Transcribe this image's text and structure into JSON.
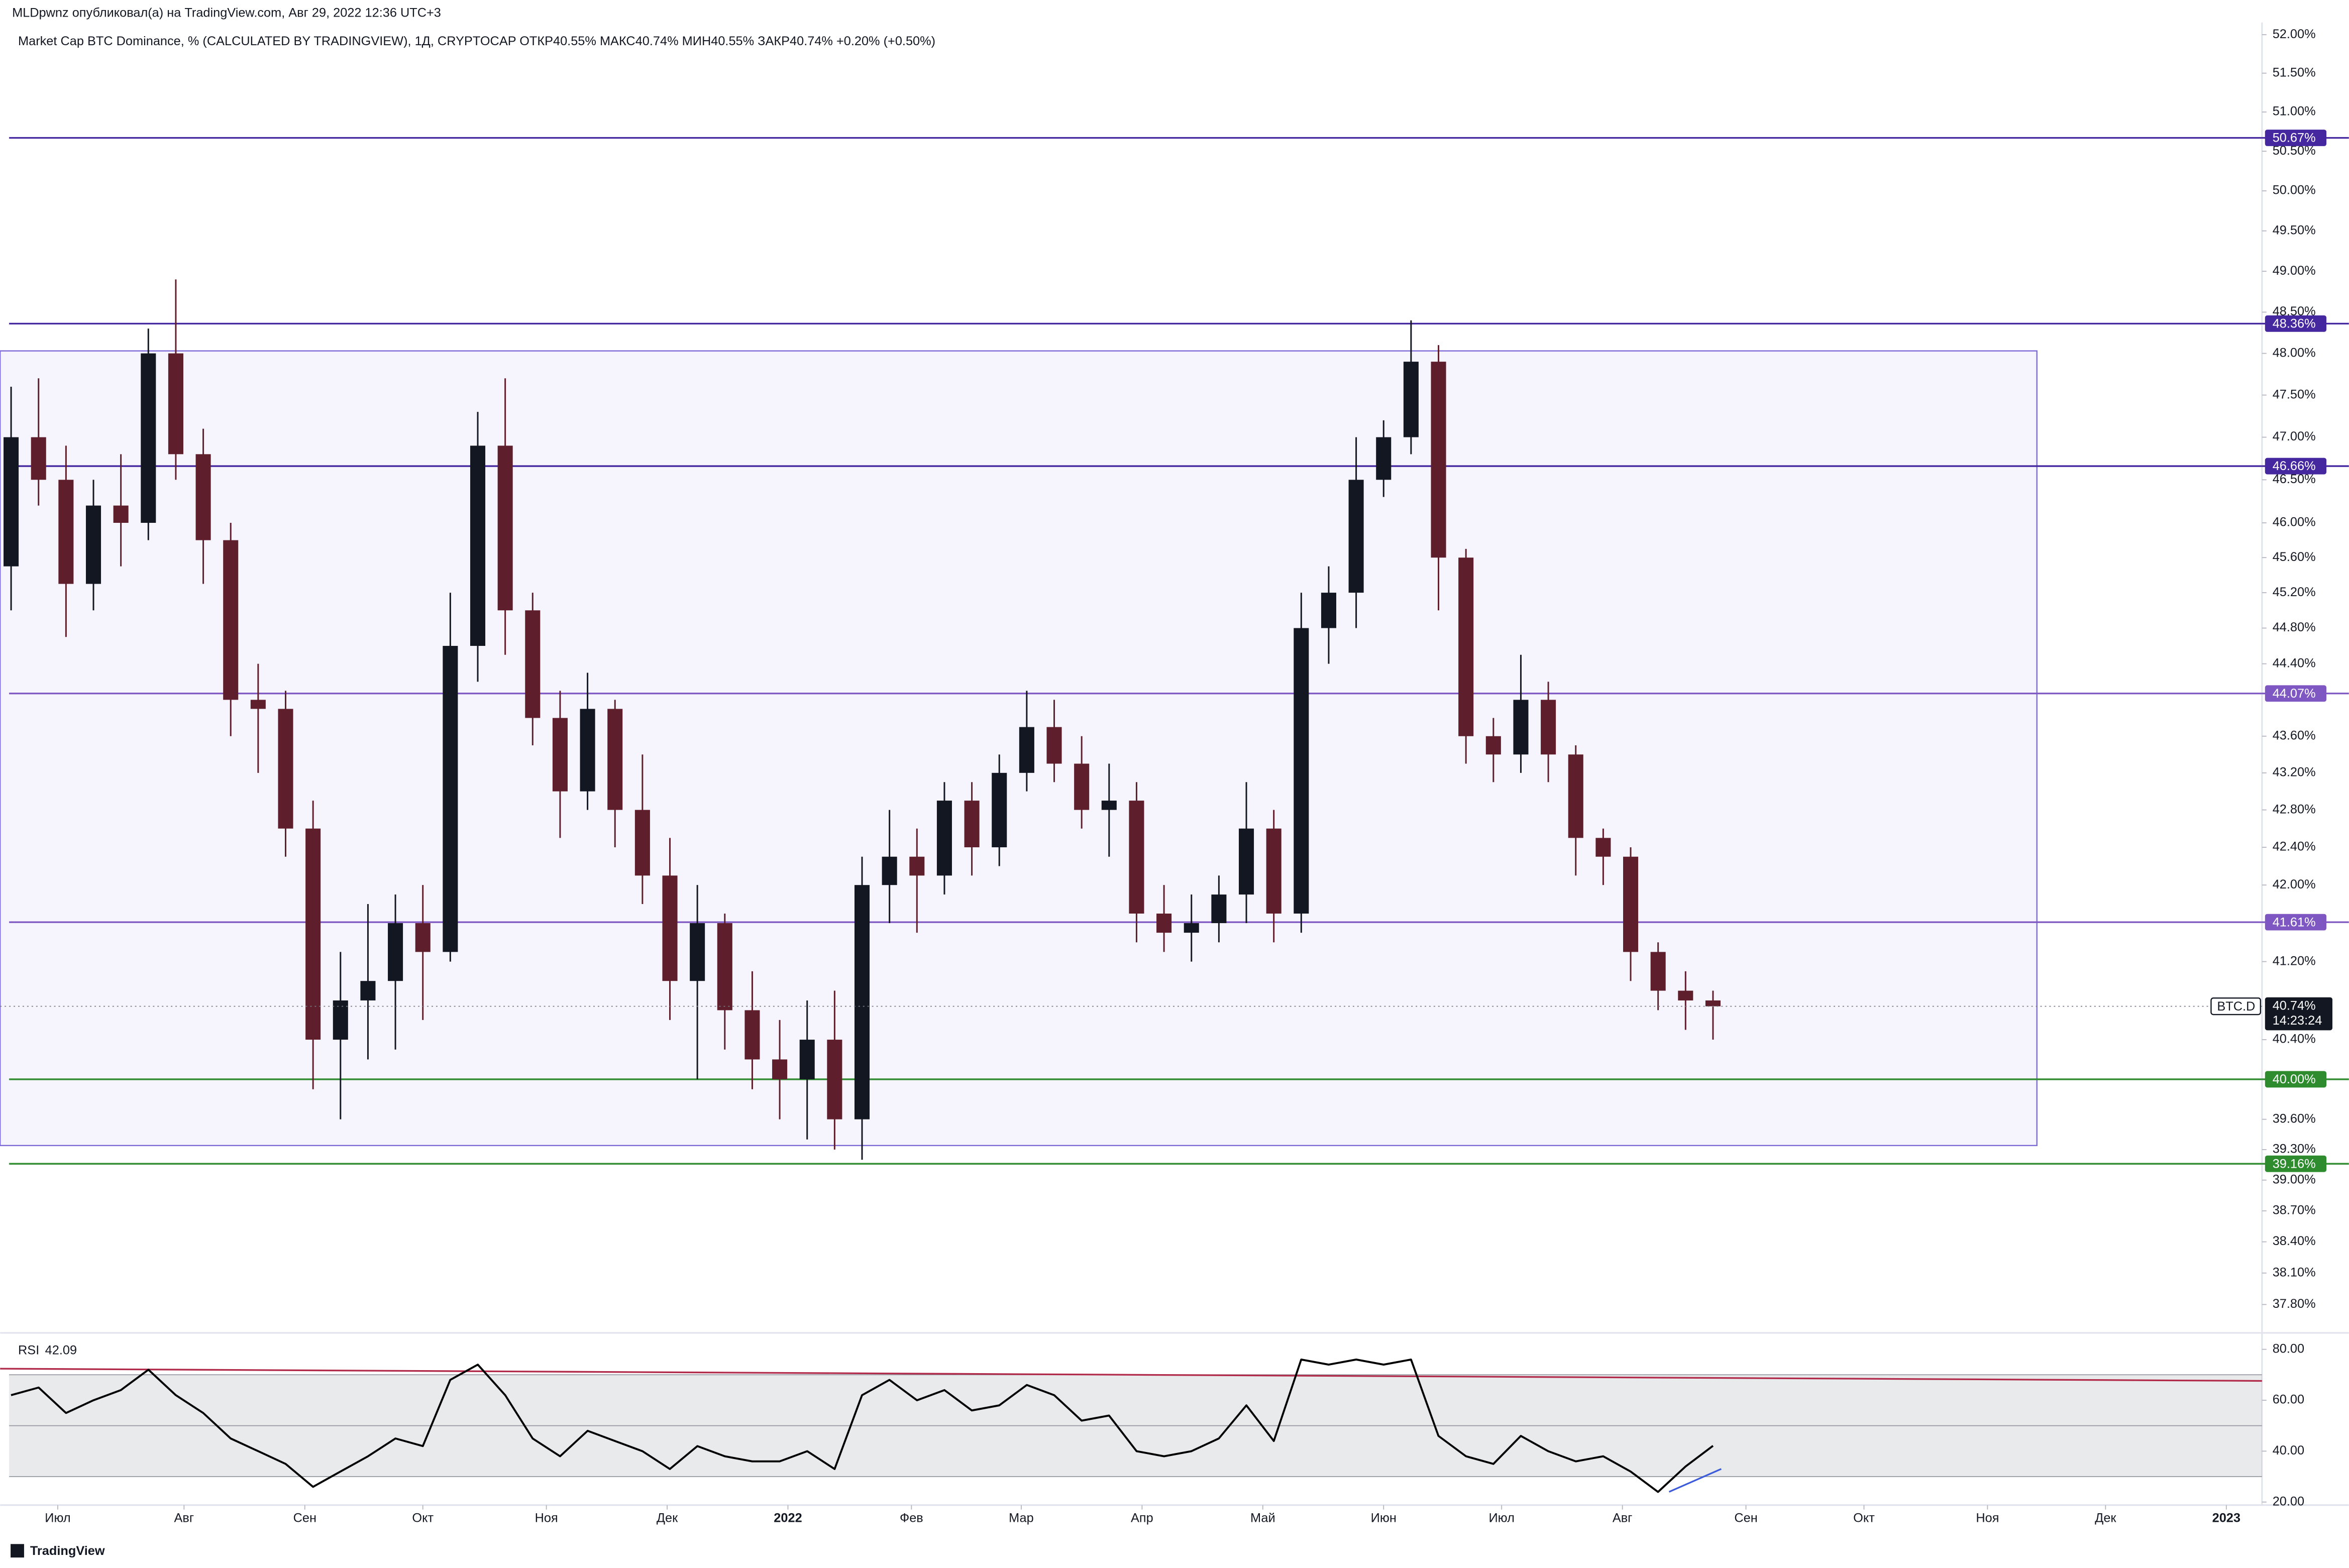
{
  "header": {
    "publisher": "MLDpwnz опубликовал(а) на TradingView.com, Авг 29, 2022 12:36 UTC+3",
    "footer": "TradingView"
  },
  "chart_data": [
    {
      "type": "candlestick",
      "title": "Market Cap BTC Dominance, % (CALCULATED BY TRADINGVIEW), 1Д, CRYPTOCAP  ОТКР40.55%  МАКС40.74%  МИН40.55%  ЗАКР40.74%  +0.20% (+0.50%)",
      "log_scale": true,
      "series": [
        {
          "name": "BTC.D",
          "up_color": "#131722",
          "down_color": "#5e1e2c",
          "open": [
            45.5,
            47.0,
            46.5,
            45.3,
            46.2,
            46.0,
            48.0,
            46.8,
            45.8,
            44.0,
            43.9,
            42.6,
            40.4,
            40.8,
            41.0,
            41.6,
            41.3,
            44.6,
            46.9,
            45.0,
            43.8,
            43.0,
            43.9,
            42.8,
            42.1,
            41.0,
            41.6,
            40.7,
            40.2,
            40.0,
            40.4,
            39.6,
            42.0,
            42.3,
            42.1,
            42.9,
            42.4,
            43.2,
            43.7,
            43.3,
            42.8,
            42.9,
            41.7,
            41.5,
            41.6,
            41.9,
            42.6,
            41.7,
            44.8,
            45.2,
            46.5,
            47.0,
            47.9,
            45.6,
            43.6,
            43.4,
            44.0,
            43.4,
            42.5,
            42.3,
            41.3,
            40.9,
            40.8
          ],
          "high": [
            47.6,
            47.7,
            46.9,
            46.5,
            46.8,
            48.3,
            48.9,
            47.1,
            46.0,
            44.4,
            44.1,
            42.9,
            41.3,
            41.8,
            41.9,
            42.0,
            45.2,
            47.3,
            47.7,
            45.2,
            44.1,
            44.3,
            44.0,
            43.4,
            42.5,
            42.0,
            41.7,
            41.1,
            40.6,
            40.8,
            40.9,
            42.3,
            42.8,
            42.6,
            43.1,
            43.1,
            43.4,
            44.1,
            44.0,
            43.6,
            43.3,
            43.1,
            42.0,
            41.9,
            42.1,
            43.1,
            42.8,
            45.2,
            45.5,
            47.0,
            47.2,
            48.4,
            48.1,
            45.7,
            43.8,
            44.5,
            44.2,
            43.5,
            42.6,
            42.4,
            41.4,
            41.1,
            40.9
          ],
          "low": [
            45.0,
            46.2,
            44.7,
            45.0,
            45.5,
            45.8,
            46.5,
            45.3,
            43.6,
            43.2,
            42.3,
            39.9,
            39.6,
            40.2,
            40.3,
            40.6,
            41.2,
            44.2,
            44.5,
            43.5,
            42.5,
            42.8,
            42.4,
            41.8,
            40.6,
            40.0,
            40.3,
            39.9,
            39.6,
            39.4,
            39.3,
            39.2,
            41.6,
            41.5,
            41.9,
            42.1,
            42.2,
            43.0,
            43.1,
            42.6,
            42.3,
            41.4,
            41.3,
            41.2,
            41.4,
            41.6,
            41.4,
            41.5,
            44.4,
            44.8,
            46.3,
            46.8,
            45.0,
            43.3,
            43.1,
            43.2,
            43.1,
            42.1,
            42.0,
            41.0,
            40.7,
            40.5,
            40.4
          ],
          "close": [
            47.0,
            46.5,
            45.3,
            46.2,
            46.0,
            48.0,
            46.8,
            45.8,
            44.0,
            43.9,
            42.6,
            40.4,
            40.8,
            41.0,
            41.6,
            41.3,
            44.6,
            46.9,
            45.0,
            43.8,
            43.0,
            43.9,
            42.8,
            42.1,
            41.0,
            41.6,
            40.7,
            40.2,
            40.0,
            40.4,
            39.6,
            42.0,
            42.3,
            42.1,
            42.9,
            42.4,
            43.2,
            43.7,
            43.3,
            42.8,
            42.9,
            41.7,
            41.5,
            41.6,
            41.9,
            42.6,
            41.7,
            44.8,
            45.2,
            46.5,
            47.0,
            47.9,
            45.6,
            43.6,
            43.4,
            44.0,
            43.4,
            42.5,
            42.3,
            41.3,
            40.9,
            40.8,
            40.74
          ]
        }
      ],
      "xlim": [
        -0.4,
        82.0
      ],
      "xticks": [
        {
          "value": 1.7,
          "label": "Июл"
        },
        {
          "value": 6.3,
          "label": "Авг"
        },
        {
          "value": 10.7,
          "label": "Сен"
        },
        {
          "value": 15.0,
          "label": "Окт"
        },
        {
          "value": 19.5,
          "label": "Ноя"
        },
        {
          "value": 23.9,
          "label": "Дек"
        },
        {
          "value": 28.3,
          "label": "2022"
        },
        {
          "value": 32.8,
          "label": "Фев"
        },
        {
          "value": 36.8,
          "label": "Мар"
        },
        {
          "value": 41.2,
          "label": "Апр"
        },
        {
          "value": 45.6,
          "label": "Май"
        },
        {
          "value": 50.0,
          "label": "Июн"
        },
        {
          "value": 54.3,
          "label": "Июл"
        },
        {
          "value": 58.7,
          "label": "Авг"
        },
        {
          "value": 63.2,
          "label": "Сен"
        },
        {
          "value": 67.5,
          "label": "Окт"
        },
        {
          "value": 72.0,
          "label": "Ноя"
        },
        {
          "value": 76.3,
          "label": "Дек"
        },
        {
          "value": 80.7,
          "label": "2023"
        }
      ],
      "ylim": [
        37.56,
        52.16
      ],
      "yticks": [
        {
          "value": 52,
          "label": "52.00%"
        },
        {
          "value": 51.5,
          "label": "51.50%"
        },
        {
          "value": 51,
          "label": "51.00%"
        },
        {
          "value": 50.5,
          "label": "50.50%"
        },
        {
          "value": 50,
          "label": "50.00%"
        },
        {
          "value": 49.5,
          "label": "49.50%"
        },
        {
          "value": 49,
          "label": "49.00%"
        },
        {
          "value": 48.5,
          "label": "48.50%"
        },
        {
          "value": 48,
          "label": "48.00%"
        },
        {
          "value": 47.5,
          "label": "47.50%"
        },
        {
          "value": 47,
          "label": "47.00%"
        },
        {
          "value": 46.5,
          "label": "46.50%"
        },
        {
          "value": 46,
          "label": "46.00%"
        },
        {
          "value": 45.6,
          "label": "45.60%"
        },
        {
          "value": 45.2,
          "label": "45.20%"
        },
        {
          "value": 44.8,
          "label": "44.80%"
        },
        {
          "value": 44.4,
          "label": "44.40%"
        },
        {
          "value": 43.6,
          "label": "43.60%"
        },
        {
          "value": 43.2,
          "label": "43.20%"
        },
        {
          "value": 42.8,
          "label": "42.80%"
        },
        {
          "value": 42.4,
          "label": "42.40%"
        },
        {
          "value": 42,
          "label": "42.00%"
        },
        {
          "value": 41.2,
          "label": "41.20%"
        },
        {
          "value": 40.4,
          "label": "40.40%"
        },
        {
          "value": 39.6,
          "label": "39.60%"
        },
        {
          "value": 39.3,
          "label": "39.30%"
        },
        {
          "value": 39,
          "label": "39.00%"
        },
        {
          "value": 38.7,
          "label": "38.70%"
        },
        {
          "value": 38.4,
          "label": "38.40%"
        },
        {
          "value": 38.1,
          "label": "38.10%"
        },
        {
          "value": 37.8,
          "label": "37.80%"
        }
      ],
      "levels": [
        {
          "value": 50.67,
          "label": "50.67%",
          "color": "#4527a0"
        },
        {
          "value": 48.36,
          "label": "48.36%",
          "color": "#4527a0"
        },
        {
          "value": 46.66,
          "label": "46.66%",
          "color": "#4527a0"
        },
        {
          "value": 44.07,
          "label": "44.07%",
          "color": "#7e57c2"
        },
        {
          "value": 41.61,
          "label": "41.61%",
          "color": "#7e57c2"
        },
        {
          "value": 40,
          "label": "40.00%",
          "color": "#2e8b2e"
        },
        {
          "value": 39.16,
          "label": "39.16%",
          "color": "#2e8b2e"
        }
      ],
      "box": {
        "xlim": [
          -0.4,
          73.8
        ],
        "ylim": [
          39.34,
          48.03
        ],
        "color": "#7e6ad6"
      },
      "last_price": {
        "value": 40.74,
        "label": "40.74%",
        "countdown": "14:23:24"
      }
    },
    {
      "type": "line",
      "title": "RSI",
      "series": [
        {
          "name": "RSI",
          "color": "#000000",
          "values": [
            62,
            65,
            55,
            60,
            64,
            72,
            62,
            55,
            45,
            40,
            35,
            26,
            32,
            38,
            45,
            42,
            68,
            74,
            62,
            45,
            38,
            48,
            44,
            40,
            33,
            42,
            38,
            36,
            36,
            40,
            33,
            62,
            68,
            60,
            64,
            56,
            58,
            66,
            62,
            52,
            54,
            40,
            38,
            40,
            45,
            58,
            44,
            76,
            74,
            76,
            74,
            76,
            46,
            38,
            35,
            46,
            40,
            36,
            38,
            32,
            24,
            34,
            42.09
          ]
        }
      ],
      "ylim": [
        18.8,
        84.7
      ],
      "yticks": [
        {
          "value": 80,
          "label": "80.00"
        },
        {
          "value": 60,
          "label": "60.00"
        },
        {
          "value": 40,
          "label": "40.00"
        },
        {
          "value": 20,
          "label": "20.00"
        }
      ],
      "bands": [
        30,
        50,
        70
      ],
      "trendlines": [
        {
          "x": [
            -0.4,
            82.0
          ],
          "y": [
            72.4,
            67.6
          ],
          "color": "#b22a4a"
        },
        {
          "x": [
            60.4,
            62.3
          ],
          "y": [
            24,
            33
          ],
          "color": "#3b5bdb"
        }
      ]
    }
  ]
}
